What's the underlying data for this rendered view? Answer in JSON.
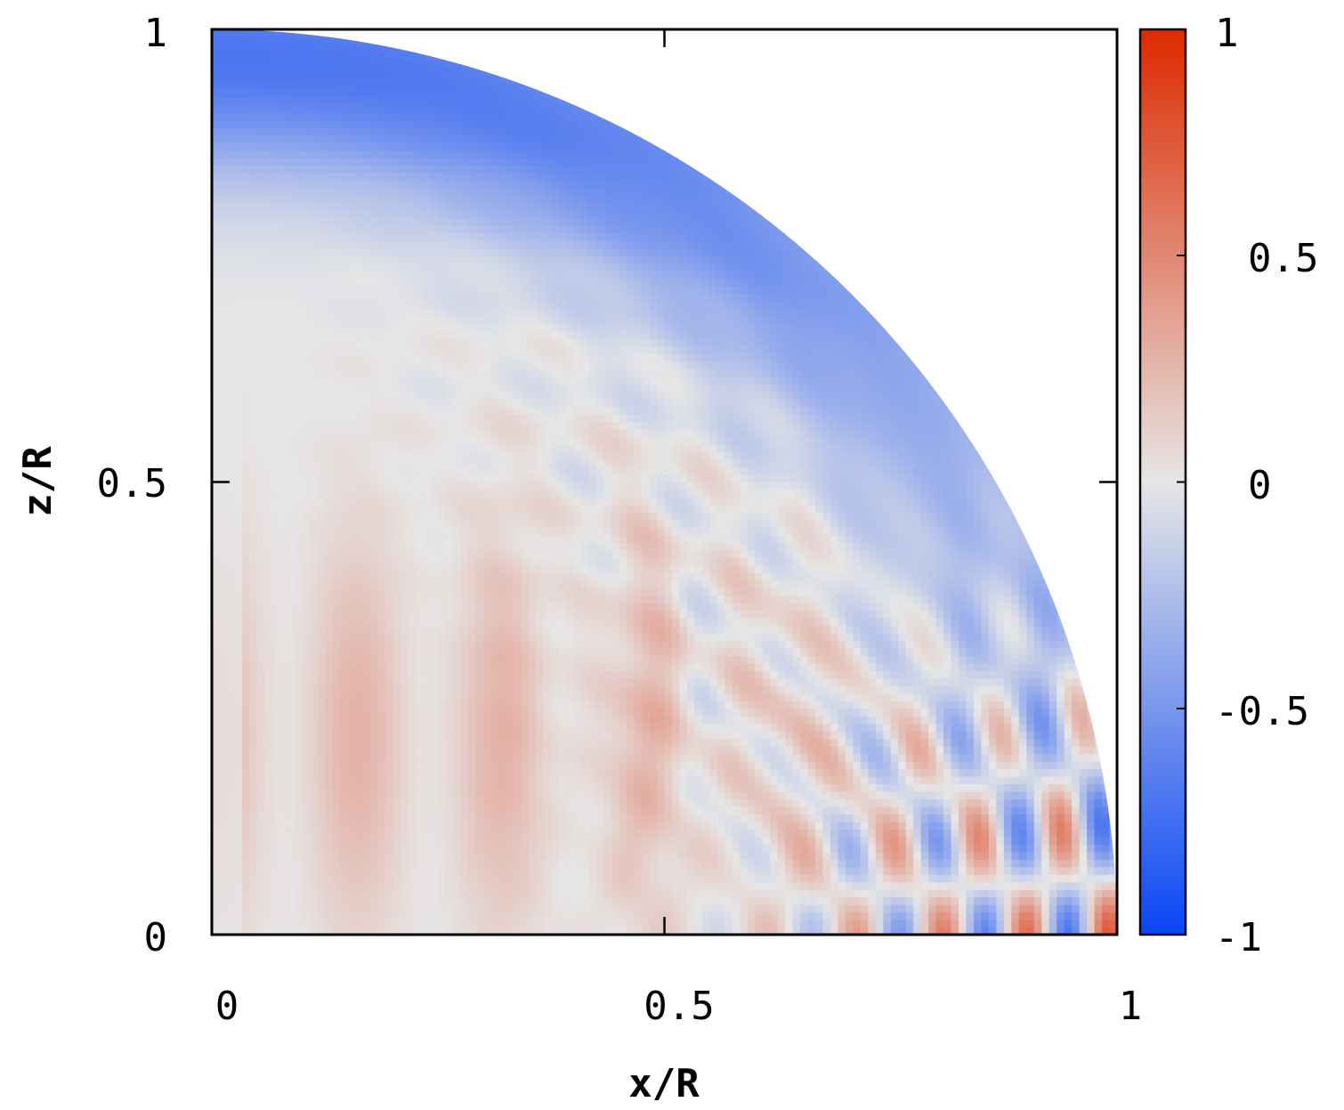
{
  "chart_data": {
    "type": "heatmap",
    "title": "",
    "xlabel": "x/R",
    "ylabel": "z/R",
    "xlim": [
      0,
      1
    ],
    "ylim": [
      0,
      1
    ],
    "x_ticks": [
      "0",
      "0.5",
      "1"
    ],
    "y_ticks": [
      "0",
      "0.5",
      "1"
    ],
    "domain_shape": "quarter-disk x^2 + z^2 <= 1",
    "colorbar": {
      "range": [
        -1,
        1
      ],
      "ticks": [
        "-1",
        "-0.5",
        "0",
        "0.5",
        "1"
      ],
      "colormap": "blue-white-red",
      "colors": {
        "min": "#0a46f5",
        "mid": "#e6e6e6",
        "max": "#dd2a00"
      },
      "placement": "right"
    },
    "field_description": "oscillating mode pattern: negative (blue) band near upper rim, positive (red) vertical bands near inner region, alternating red/blue checkerboard toward equator near x=1"
  }
}
